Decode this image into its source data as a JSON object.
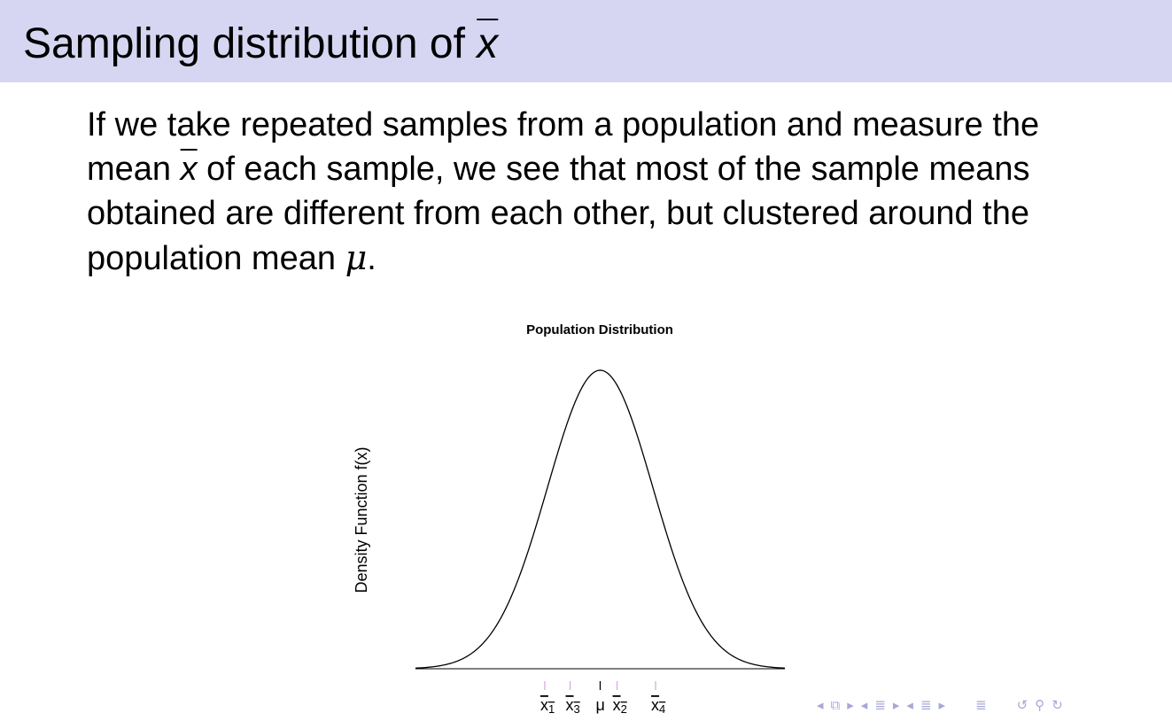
{
  "slide": {
    "title_prefix": "Sampling distribution of ",
    "title_var": "x",
    "body": {
      "part1": "If we take repeated samples from a population and measure the mean ",
      "var": "x",
      "part2": " of each sample, we see that most of the sample means obtained are different from each other, but clustered around the population mean ",
      "mu": "μ",
      "part3": "."
    }
  },
  "chart_data": {
    "type": "line",
    "title": "Population Distribution",
    "xlabel": "",
    "ylabel": "Density Function f(x)",
    "curve": "normal-density",
    "mean": 0,
    "sd": 1,
    "xlim": [
      -3.5,
      3.5
    ],
    "ticks": [
      {
        "label": "x",
        "sub": "1",
        "bar": true,
        "x": -1.05,
        "color": "#d8a8e8"
      },
      {
        "label": "x",
        "sub": "3",
        "bar": true,
        "x": -0.57,
        "color": "#d8a8e8"
      },
      {
        "label": "μ",
        "sub": "",
        "bar": false,
        "x": 0.0,
        "color": "#000000"
      },
      {
        "label": "x",
        "sub": "2",
        "bar": true,
        "x": 0.32,
        "color": "#d8a8e8"
      },
      {
        "label": "x",
        "sub": "4",
        "bar": true,
        "x": 1.05,
        "color": "#d8a8e8"
      }
    ]
  },
  "nav": {
    "color": "#a8a8d8",
    "icons": [
      "nav-frame-left-icon",
      "nav-frame-icon",
      "nav-frame-right-icon",
      "nav-subsection-left-icon",
      "nav-subsection-icon",
      "nav-subsection-right-icon",
      "nav-section-left-icon",
      "nav-section-icon",
      "nav-section-right-icon",
      "nav-toc-icon",
      "nav-undo-icon",
      "nav-search-icon",
      "nav-redo-icon"
    ]
  }
}
